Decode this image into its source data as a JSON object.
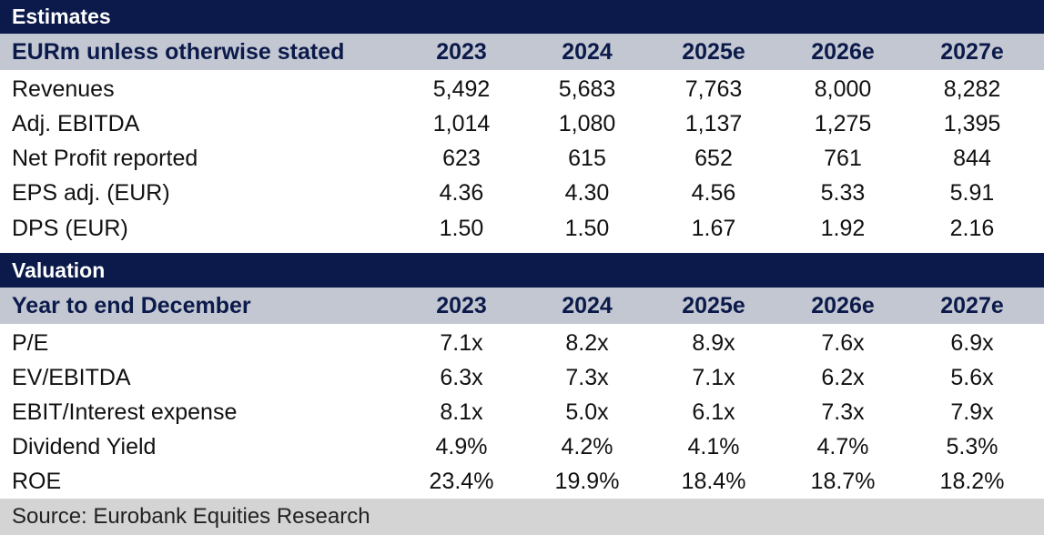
{
  "estimates": {
    "section_title": "Estimates",
    "header_label": "EURm unless otherwise stated",
    "years": [
      "2023",
      "2024",
      "2025e",
      "2026e",
      "2027e"
    ],
    "rows": [
      {
        "label": "Revenues",
        "values": [
          "5,492",
          "5,683",
          "7,763",
          "8,000",
          "8,282"
        ]
      },
      {
        "label": "Adj. EBITDA",
        "values": [
          "1,014",
          "1,080",
          "1,137",
          "1,275",
          "1,395"
        ]
      },
      {
        "label": "Net Profit reported",
        "values": [
          "623",
          "615",
          "652",
          "761",
          "844"
        ]
      },
      {
        "label": "EPS adj. (EUR)",
        "values": [
          "4.36",
          "4.30",
          "4.56",
          "5.33",
          "5.91"
        ]
      },
      {
        "label": "DPS (EUR)",
        "values": [
          "1.50",
          "1.50",
          "1.67",
          "1.92",
          "2.16"
        ]
      }
    ]
  },
  "valuation": {
    "section_title": "Valuation",
    "header_label": "Year to end December",
    "years": [
      "2023",
      "2024",
      "2025e",
      "2026e",
      "2027e"
    ],
    "rows": [
      {
        "label": "P/E",
        "values": [
          "7.1x",
          "8.2x",
          "8.9x",
          "7.6x",
          "6.9x"
        ]
      },
      {
        "label": "EV/EBITDA",
        "values": [
          "6.3x",
          "7.3x",
          "7.1x",
          "6.2x",
          "5.6x"
        ]
      },
      {
        "label": "EBIT/Interest expense",
        "values": [
          "8.1x",
          "5.0x",
          "6.1x",
          "7.3x",
          "7.9x"
        ]
      },
      {
        "label": "Dividend Yield",
        "values": [
          "4.9%",
          "4.2%",
          "4.1%",
          "4.7%",
          "5.3%"
        ]
      },
      {
        "label": "ROE",
        "values": [
          "23.4%",
          "19.9%",
          "18.4%",
          "18.7%",
          "18.2%"
        ]
      }
    ]
  },
  "footer": {
    "source": "Source: Eurobank Equities Research"
  },
  "colors": {
    "navy": "#0b1a4a",
    "subheader_bg": "#c3c7d2",
    "footer_bg": "#d4d4d4"
  }
}
